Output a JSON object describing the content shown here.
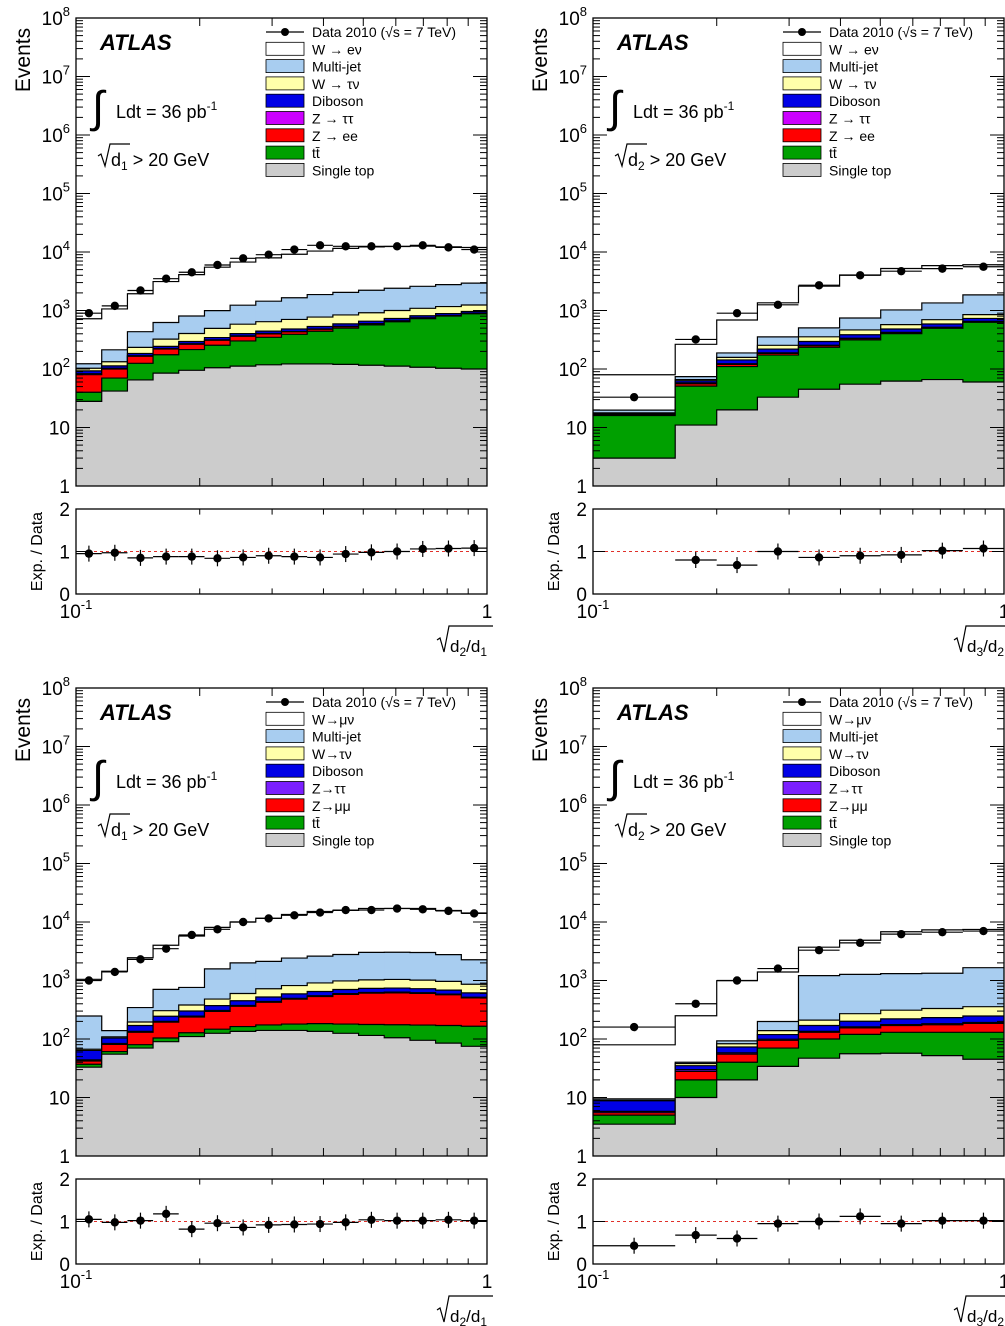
{
  "legend_colors": {
    "W → eν": "#ffffff",
    "W→μν": "#ffffff",
    "Multi-jet": "#a8cdf0",
    "W → τν": "#ffffaa",
    "W→τν": "#ffffaa",
    "Diboson": "#0000e6",
    "Z → ττ": "#cc00ff",
    "Z→ττ": "#7b1fff",
    "Z → ee": "#ff0000",
    "Z→μμ": "#ff0000",
    "tt̄": "#00a000",
    "Single top": "#cccccc"
  },
  "chart_data": [
    {
      "type": "area",
      "title": "ATLAS",
      "lumi_label": "Ldt = 36 pb",
      "lumi_sup": "-1",
      "cut_label": "> 20 GeV",
      "cut_var": "d",
      "cut_sub": "1",
      "ylabel": "Events",
      "ratio_ylabel": "Exp. / Data",
      "xlabel_num": "d",
      "xlabel_num_sub": "2",
      "xlabel_den": "d",
      "xlabel_den_sub": "1",
      "xscale": "log",
      "yscale": "log",
      "xlim": [
        0.1,
        1
      ],
      "ylim": [
        1,
        100000000
      ],
      "ratio_ylim": [
        0,
        2
      ],
      "y_ticks": [
        "1",
        "10",
        "10²",
        "10³",
        "10⁴",
        "10⁵",
        "10⁶",
        "10⁷",
        "10⁸"
      ],
      "x_tick_labels": [
        "10⁻¹",
        "1"
      ],
      "ratio_y_ticks": [
        "0",
        "1",
        "2"
      ],
      "bin_edges": [
        0.1,
        0.1155,
        0.1334,
        0.154,
        0.1778,
        0.2054,
        0.2371,
        0.2738,
        0.3162,
        0.3652,
        0.4217,
        0.487,
        0.5623,
        0.6494,
        0.7499,
        0.866,
        1.0
      ],
      "legend": [
        "Data 2010 (√s = 7 TeV)",
        "W → eν",
        "Multi-jet",
        "W → τν",
        "Diboson",
        "Z → ττ",
        "Z → ee",
        "tt̄",
        "Single top"
      ],
      "stack_order": [
        "Single top",
        "tt̄",
        "Z → ee",
        "Z → ττ",
        "Diboson",
        "W → τν",
        "Multi-jet",
        "W → eν"
      ],
      "series": [
        {
          "name": "Single top",
          "values": [
            28,
            42,
            65,
            85,
            95,
            105,
            112,
            118,
            122,
            122,
            120,
            116,
            112,
            107,
            103,
            100
          ]
        },
        {
          "name": "tt̄",
          "values": [
            12,
            28,
            60,
            90,
            120,
            150,
            190,
            230,
            270,
            320,
            380,
            450,
            530,
            620,
            700,
            780
          ]
        },
        {
          "name": "Z → ee",
          "values": [
            40,
            30,
            40,
            45,
            50,
            55,
            60,
            50,
            40,
            35,
            30,
            25,
            20,
            18,
            15,
            12
          ]
        },
        {
          "name": "Z → ττ",
          "values": [
            3,
            3,
            4,
            4,
            5,
            5,
            6,
            6,
            6,
            6,
            5,
            5,
            5,
            4,
            4,
            4
          ]
        },
        {
          "name": "Diboson",
          "values": [
            10,
            10,
            15,
            20,
            25,
            30,
            35,
            40,
            45,
            50,
            55,
            60,
            62,
            65,
            65,
            65
          ]
        },
        {
          "name": "W → τν",
          "values": [
            10,
            20,
            50,
            80,
            110,
            150,
            180,
            200,
            220,
            240,
            250,
            260,
            270,
            275,
            280,
            280
          ]
        },
        {
          "name": "Multi-jet",
          "values": [
            20,
            80,
            200,
            300,
            400,
            500,
            650,
            800,
            950,
            1100,
            1200,
            1300,
            1400,
            1500,
            1600,
            1700
          ]
        },
        {
          "name": "W → eν",
          "values": [
            600,
            850,
            1500,
            2500,
            3300,
            4500,
            5500,
            6500,
            7500,
            8500,
            9500,
            10000,
            10000,
            10000,
            9500,
            9000
          ]
        }
      ],
      "data_points": {
        "x": [
          0.1075,
          0.1243,
          0.1435,
          0.1657,
          0.1913,
          0.2209,
          0.2551,
          0.2943,
          0.3398,
          0.3925,
          0.4531,
          0.5233,
          0.6043,
          0.6977,
          0.8058,
          0.9306
        ],
        "y": [
          900,
          1200,
          2200,
          3500,
          4500,
          6000,
          7800,
          9000,
          11000,
          13000,
          12500,
          12500,
          12500,
          13000,
          12000,
          11000
        ],
        "ratio": [
          0.95,
          0.97,
          0.85,
          0.88,
          0.88,
          0.84,
          0.86,
          0.9,
          0.88,
          0.86,
          0.94,
          0.98,
          1.0,
          1.06,
          1.07,
          1.08
        ]
      }
    },
    {
      "type": "area",
      "title": "ATLAS",
      "lumi_label": "Ldt = 36 pb",
      "lumi_sup": "-1",
      "cut_label": "> 20 GeV",
      "cut_var": "d",
      "cut_sub": "2",
      "ylabel": "Events",
      "ratio_ylabel": "Exp. / Data",
      "xlabel_num": "d",
      "xlabel_num_sub": "3",
      "xlabel_den": "d",
      "xlabel_den_sub": "2",
      "xscale": "log",
      "yscale": "log",
      "xlim": [
        0.1,
        1
      ],
      "ylim": [
        1,
        100000000
      ],
      "ratio_ylim": [
        0,
        2
      ],
      "y_ticks": [
        "1",
        "10",
        "10²",
        "10³",
        "10⁴",
        "10⁵",
        "10⁶",
        "10⁷",
        "10⁸"
      ],
      "x_tick_labels": [
        "10⁻¹",
        "1"
      ],
      "ratio_y_ticks": [
        "0",
        "1",
        "2"
      ],
      "bin_edges": [
        0.1,
        0.1585,
        0.2,
        0.2512,
        0.3162,
        0.3981,
        0.5012,
        0.631,
        0.7943,
        1.0
      ],
      "legend": [
        "Data 2010 (√s = 7 TeV)",
        "W → eν",
        "Multi-jet",
        "W → τν",
        "Diboson",
        "Z → ττ",
        "Z → ee",
        "tt̄",
        "Single top"
      ],
      "stack_order": [
        "Single top",
        "tt̄",
        "Z → ee",
        "Z → ττ",
        "Diboson",
        "W → τν",
        "Multi-jet",
        "W → eν"
      ],
      "series": [
        {
          "name": "Single top",
          "values": [
            3,
            11,
            20,
            33,
            45,
            55,
            62,
            66,
            60
          ]
        },
        {
          "name": "tt̄",
          "values": [
            13,
            40,
            90,
            140,
            190,
            260,
            340,
            430,
            570
          ]
        },
        {
          "name": "Z → ee",
          "values": [
            0.5,
            5,
            10,
            12,
            15,
            15,
            15,
            15,
            15
          ]
        },
        {
          "name": "Z → ττ",
          "values": [
            0.3,
            2,
            3,
            4,
            5,
            5,
            6,
            6,
            6
          ]
        },
        {
          "name": "Diboson",
          "values": [
            0.5,
            5,
            20,
            30,
            40,
            50,
            60,
            70,
            80
          ]
        },
        {
          "name": "W → τν",
          "values": [
            0.5,
            3,
            15,
            35,
            60,
            80,
            90,
            110,
            120
          ]
        },
        {
          "name": "Multi-jet",
          "values": [
            2,
            8,
            30,
            100,
            150,
            280,
            450,
            650,
            1000
          ]
        },
        {
          "name": "W → eν",
          "values": [
            60,
            190,
            500,
            1000,
            2100,
            3300,
            4200,
            4500,
            4200
          ]
        }
      ],
      "data_points": {
        "x": [
          0.1259,
          0.1778,
          0.2241,
          0.2818,
          0.3548,
          0.4467,
          0.5623,
          0.7079,
          0.8913
        ],
        "y": [
          33,
          320,
          900,
          1250,
          2700,
          4000,
          4700,
          5200,
          5600
        ],
        "ratio": [
          null,
          0.8,
          0.68,
          1.0,
          0.86,
          0.9,
          0.92,
          1.02,
          1.07
        ]
      }
    },
    {
      "type": "area",
      "title": "ATLAS",
      "lumi_label": "Ldt = 36 pb",
      "lumi_sup": "-1",
      "cut_label": "> 20 GeV",
      "cut_var": "d",
      "cut_sub": "1",
      "ylabel": "Events",
      "ratio_ylabel": "Exp. / Data",
      "xlabel_num": "d",
      "xlabel_num_sub": "2",
      "xlabel_den": "d",
      "xlabel_den_sub": "1",
      "xscale": "log",
      "yscale": "log",
      "xlim": [
        0.1,
        1
      ],
      "ylim": [
        1,
        100000000
      ],
      "ratio_ylim": [
        0,
        2
      ],
      "y_ticks": [
        "1",
        "10",
        "10²",
        "10³",
        "10⁴",
        "10⁵",
        "10⁶",
        "10⁷",
        "10⁸"
      ],
      "x_tick_labels": [
        "10⁻¹",
        "1"
      ],
      "ratio_y_ticks": [
        "0",
        "1",
        "2"
      ],
      "bin_edges": [
        0.1,
        0.1155,
        0.1334,
        0.154,
        0.1778,
        0.2054,
        0.2371,
        0.2738,
        0.3162,
        0.3652,
        0.4217,
        0.487,
        0.5623,
        0.6494,
        0.7499,
        0.866,
        1.0
      ],
      "legend": [
        "Data 2010 (√s = 7 TeV)",
        "W→μν",
        "Multi-jet",
        "W→τν",
        "Diboson",
        "Z→ττ",
        "Z→μμ",
        "tt̄",
        "Single top"
      ],
      "stack_order": [
        "Single top",
        "tt̄",
        "Z→μμ",
        "Z→ττ",
        "Diboson",
        "W→τν",
        "Multi-jet",
        "W→μν"
      ],
      "series": [
        {
          "name": "Single top",
          "values": [
            33,
            55,
            70,
            90,
            110,
            125,
            135,
            140,
            140,
            135,
            125,
            115,
            105,
            95,
            85,
            75
          ]
        },
        {
          "name": "tt̄",
          "values": [
            4,
            6,
            10,
            14,
            18,
            22,
            28,
            34,
            40,
            48,
            55,
            62,
            70,
            78,
            85,
            90
          ]
        },
        {
          "name": "Z→μμ",
          "values": [
            5,
            20,
            50,
            90,
            110,
            150,
            200,
            250,
            300,
            350,
            400,
            430,
            440,
            430,
            400,
            340
          ]
        },
        {
          "name": "Z→ττ",
          "values": [
            2,
            3,
            5,
            6,
            8,
            10,
            12,
            14,
            15,
            16,
            17,
            17,
            17,
            16,
            15,
            14
          ]
        },
        {
          "name": "Diboson",
          "values": [
            20,
            20,
            35,
            45,
            55,
            65,
            75,
            85,
            95,
            100,
            105,
            110,
            110,
            105,
            100,
            95
          ]
        },
        {
          "name": "W→τν",
          "values": [
            3,
            5,
            25,
            60,
            80,
            110,
            150,
            200,
            230,
            260,
            280,
            290,
            300,
            290,
            280,
            250
          ]
        },
        {
          "name": "Multi-jet",
          "values": [
            180,
            30,
            150,
            400,
            380,
            1100,
            1400,
            1400,
            1600,
            1700,
            1800,
            2000,
            2000,
            2000,
            1800,
            1400
          ]
        },
        {
          "name": "W→μν",
          "values": [
            800,
            1300,
            2100,
            3300,
            5000,
            6500,
            8000,
            9500,
            11000,
            12500,
            13000,
            14000,
            14000,
            14000,
            13000,
            12000
          ]
        }
      ],
      "data_points": {
        "x": [
          0.1075,
          0.1243,
          0.1435,
          0.1657,
          0.1913,
          0.2209,
          0.2551,
          0.2943,
          0.3398,
          0.3925,
          0.4531,
          0.5233,
          0.6043,
          0.6977,
          0.8058,
          0.9306
        ],
        "y": [
          1000,
          1400,
          2300,
          3500,
          6000,
          7500,
          10000,
          11500,
          13000,
          14500,
          16000,
          16000,
          17000,
          16500,
          15500,
          14000
        ],
        "ratio": [
          1.05,
          0.98,
          1.02,
          1.18,
          0.82,
          0.96,
          0.86,
          0.92,
          0.93,
          0.94,
          0.98,
          1.04,
          1.02,
          1.02,
          1.04,
          1.02
        ]
      }
    },
    {
      "type": "area",
      "title": "ATLAS",
      "lumi_label": "Ldt = 36 pb",
      "lumi_sup": "-1",
      "cut_label": "> 20 GeV",
      "cut_var": "d",
      "cut_sub": "2",
      "ylabel": "Events",
      "ratio_ylabel": "Exp. / Data",
      "xlabel_num": "d",
      "xlabel_num_sub": "3",
      "xlabel_den": "d",
      "xlabel_den_sub": "2",
      "xscale": "log",
      "yscale": "log",
      "xlim": [
        0.1,
        1
      ],
      "ylim": [
        1,
        100000000
      ],
      "ratio_ylim": [
        0,
        2
      ],
      "y_ticks": [
        "1",
        "10",
        "10²",
        "10³",
        "10⁴",
        "10⁵",
        "10⁶",
        "10⁷",
        "10⁸"
      ],
      "x_tick_labels": [
        "10⁻¹",
        "1"
      ],
      "ratio_y_ticks": [
        "0",
        "1",
        "2"
      ],
      "bin_edges": [
        0.1,
        0.1585,
        0.2,
        0.2512,
        0.3162,
        0.3981,
        0.5012,
        0.631,
        0.7943,
        1.0
      ],
      "legend": [
        "Data 2010 (√s = 7 TeV)",
        "W→μν",
        "Multi-jet",
        "W→τν",
        "Diboson",
        "Z→ττ",
        "Z→μμ",
        "tt̄",
        "Single top"
      ],
      "stack_order": [
        "Single top",
        "tt̄",
        "Z→μμ",
        "Z→ττ",
        "Diboson",
        "W→τν",
        "Multi-jet",
        "W→μν"
      ],
      "series": [
        {
          "name": "Single top",
          "values": [
            3.5,
            10,
            20,
            34,
            47,
            56,
            57,
            52,
            45
          ]
        },
        {
          "name": "tt̄",
          "values": [
            1.5,
            10,
            20,
            36,
            53,
            64,
            73,
            78,
            85
          ]
        },
        {
          "name": "Z→μμ",
          "values": [
            0.5,
            8,
            15,
            25,
            30,
            35,
            40,
            45,
            55
          ]
        },
        {
          "name": "Z→ττ",
          "values": [
            0.3,
            2,
            3,
            4,
            5,
            6,
            6,
            7,
            7
          ]
        },
        {
          "name": "Diboson",
          "values": [
            3,
            5,
            15,
            20,
            35,
            40,
            45,
            50,
            55
          ]
        },
        {
          "name": "W→τν",
          "values": [
            0.2,
            3,
            10,
            20,
            40,
            70,
            90,
            100,
            110
          ]
        },
        {
          "name": "Multi-jet",
          "values": [
            0.5,
            2,
            10,
            60,
            1000,
            1000,
            1000,
            1000,
            1300
          ]
        },
        {
          "name": "W→μν",
          "values": [
            70,
            210,
            900,
            1200,
            2500,
            3600,
            5500,
            6000,
            5800
          ]
        }
      ],
      "data_points": {
        "x": [
          0.1259,
          0.1778,
          0.2241,
          0.2818,
          0.3548,
          0.4467,
          0.5623,
          0.7079,
          0.8913
        ],
        "y": [
          160,
          400,
          1000,
          1600,
          3300,
          4400,
          6200,
          6700,
          7000
        ],
        "ratio": [
          0.43,
          0.68,
          0.6,
          0.95,
          1.0,
          1.12,
          0.95,
          1.02,
          1.02
        ]
      }
    }
  ]
}
